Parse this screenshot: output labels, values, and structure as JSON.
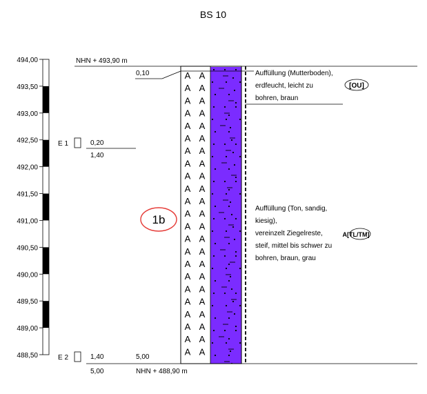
{
  "title": "BS 10",
  "depth_axis": {
    "ticks": [
      "494,00",
      "493,50",
      "493,00",
      "492,50",
      "492,00",
      "491,50",
      "491,00",
      "490,50",
      "490,00",
      "489,50",
      "489,00",
      "488,50"
    ],
    "values": [
      494.0,
      493.5,
      493.0,
      492.5,
      492.0,
      491.5,
      491.0,
      490.5,
      490.0,
      489.5,
      489.0,
      488.5
    ],
    "band_fill": "#000000"
  },
  "top_level": "NHN + 493,90 m",
  "bottom_level": "NHN + 488,90 m",
  "layer_boundaries": {
    "top_layer_depth": "0,10",
    "final_depth_top": "5,00",
    "final_depth_bottom": "5,00"
  },
  "samples": [
    {
      "id": "E 1",
      "from": "0,20",
      "to": "1,40"
    },
    {
      "id": "E 2",
      "from": "1,40",
      "to": "5,00"
    }
  ],
  "homogeneous_area_label": "1b",
  "homogeneous_area_color": "#e53935",
  "fill_color": "#7b2cff",
  "layers": [
    {
      "lines": [
        "Auffüllung (Mutterboden),",
        "erdfeucht, leicht zu",
        "bohren, braun"
      ],
      "soil_group": "[OU]"
    },
    {
      "lines": [
        "Auffüllung (Ton, sandig,",
        "kiesig),",
        "vereinzelt Ziegelreste,",
        "steif, mittel bis schwer zu",
        "bohren, braun, grau"
      ],
      "soil_group": "A[TL/TM]"
    }
  ]
}
